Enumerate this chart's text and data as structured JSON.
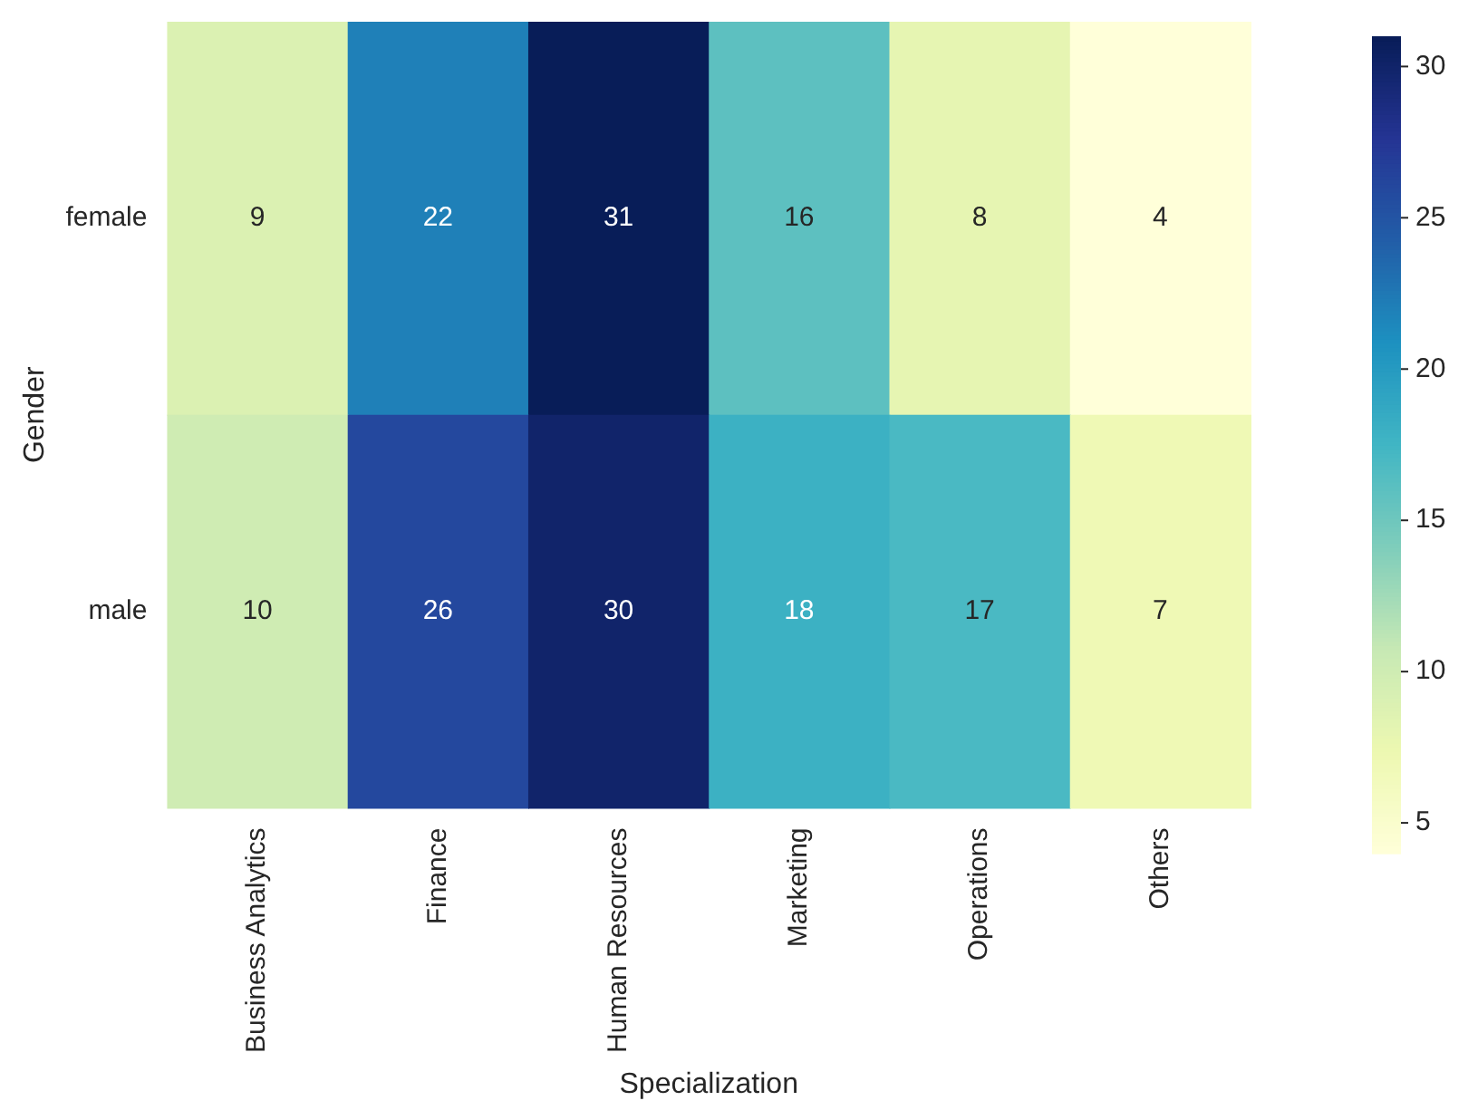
{
  "chart_data": {
    "type": "heatmap",
    "xlabel": "Specialization",
    "ylabel": "Gender",
    "categories": [
      "Business Analytics",
      "Finance",
      "Human Resources",
      "Marketing",
      "Operations",
      "Others"
    ],
    "y_categories": [
      "female",
      "male"
    ],
    "cells": [
      [
        9,
        22,
        31,
        16,
        8,
        4
      ],
      [
        10,
        26,
        30,
        18,
        17,
        7
      ]
    ],
    "clim": [
      4,
      31
    ],
    "cticks": [
      5,
      10,
      15,
      20,
      25,
      30
    ],
    "data_labels": true
  }
}
